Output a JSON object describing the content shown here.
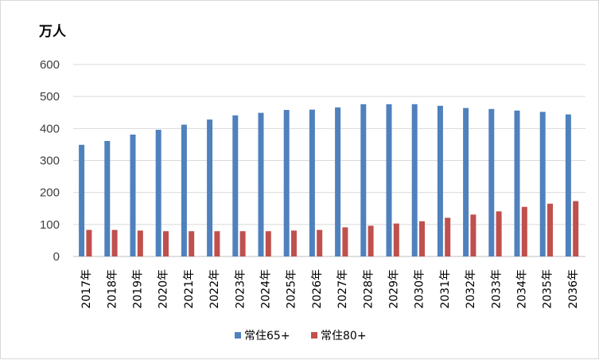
{
  "chart_data": {
    "type": "bar",
    "ylabel": "万人",
    "ylim": [
      0,
      600
    ],
    "yticks": [
      0,
      100,
      200,
      300,
      400,
      500,
      600
    ],
    "grid": true,
    "legend_position": "bottom",
    "categories": [
      "2017年",
      "2018年",
      "2019年",
      "2020年",
      "2021年",
      "2022年",
      "2023年",
      "2024年",
      "2025年",
      "2026年",
      "2027年",
      "2028年",
      "2029年",
      "2030年",
      "2031年",
      "2032年",
      "2033年",
      "2034年",
      "2035年",
      "2036年"
    ],
    "series": [
      {
        "name": "常住65+",
        "color": "#4f81bd",
        "values": [
          349,
          361,
          381,
          396,
          412,
          428,
          441,
          449,
          458,
          459,
          466,
          476,
          476,
          476,
          471,
          464,
          461,
          456,
          452,
          444
        ]
      },
      {
        "name": "常住80+",
        "color": "#c0504d",
        "values": [
          83,
          83,
          81,
          79,
          79,
          79,
          79,
          79,
          81,
          83,
          91,
          96,
          103,
          110,
          121,
          131,
          141,
          155,
          165,
          173
        ]
      }
    ]
  }
}
